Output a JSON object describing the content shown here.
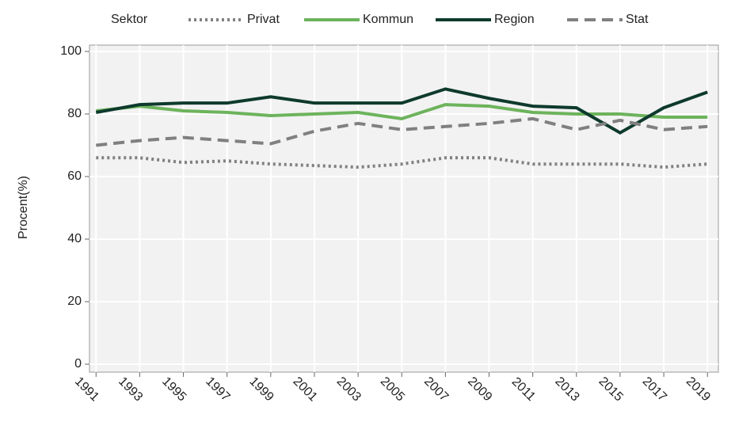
{
  "chart_data": {
    "type": "line",
    "legend_title": "Sektor",
    "y_label": "Procent(%)",
    "x": [
      1991,
      1993,
      1995,
      1997,
      1999,
      2001,
      2003,
      2005,
      2007,
      2009,
      2011,
      2013,
      2015,
      2017,
      2019
    ],
    "xlim": [
      1990.7,
      2019.5
    ],
    "xticks": [
      1991,
      1993,
      1995,
      1997,
      1999,
      2001,
      2003,
      2005,
      2007,
      2009,
      2011,
      2013,
      2015,
      2017,
      2019
    ],
    "ylim": [
      0,
      100
    ],
    "yticks": [
      0,
      20,
      40,
      60,
      80,
      100
    ],
    "grid": true,
    "legend": "top",
    "series": [
      {
        "name": "Privat",
        "color": "#808080",
        "style": "dotted",
        "values": [
          66,
          66,
          64.5,
          65,
          64,
          63.5,
          63,
          64,
          66,
          66,
          64,
          64,
          64,
          63,
          64
        ]
      },
      {
        "name": "Kommun",
        "color": "#6db35c",
        "style": "solid",
        "values": [
          81,
          82.5,
          81,
          80.5,
          79.5,
          80,
          80.5,
          78.5,
          83,
          82.5,
          80.5,
          80,
          80,
          79,
          79
        ]
      },
      {
        "name": "Region",
        "color": "#0e3a2d",
        "style": "solid",
        "values": [
          80.5,
          83,
          83.5,
          83.5,
          85.5,
          83.5,
          83.5,
          83.5,
          88,
          85,
          82.5,
          82,
          74,
          82,
          87
        ]
      },
      {
        "name": "Stat",
        "color": "#808080",
        "style": "dashed",
        "values": [
          70,
          71.5,
          72.5,
          71.5,
          70.5,
          74.5,
          77,
          75,
          76,
          77,
          78.5,
          75,
          78,
          75,
          76
        ]
      }
    ]
  }
}
